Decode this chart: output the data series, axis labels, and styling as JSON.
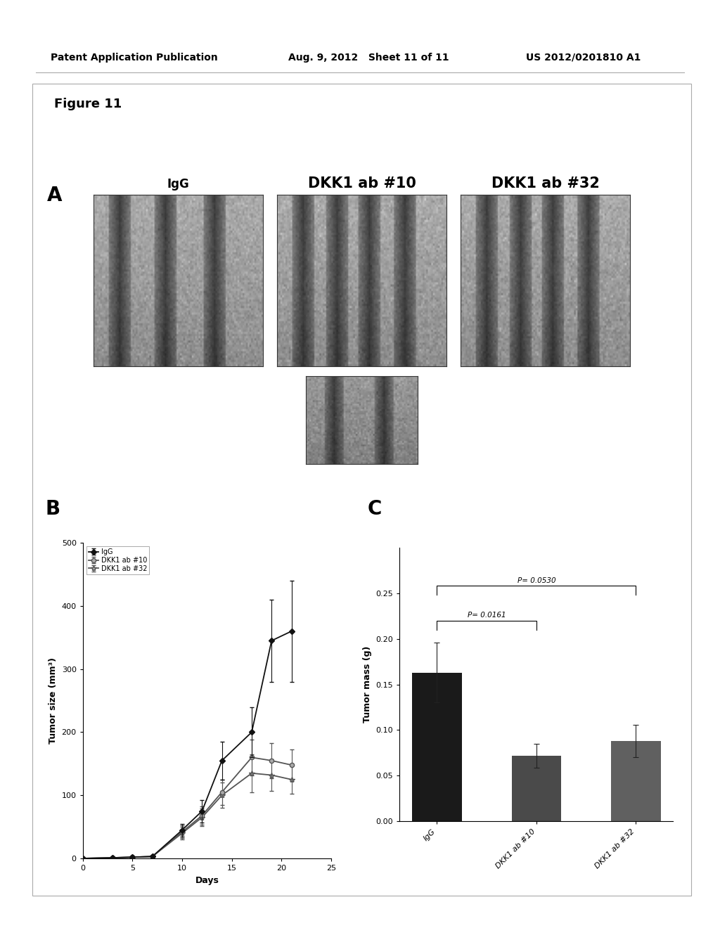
{
  "header_left": "Patent Application Publication",
  "header_mid": "Aug. 9, 2012   Sheet 11 of 11",
  "header_right": "US 2012/0201810 A1",
  "figure_label": "Figure 11",
  "panel_A_label": "A",
  "panel_B_label": "B",
  "panel_C_label": "C",
  "panel_A_titles": [
    "IgG",
    "DKK1 ab #10",
    "DKK1 ab #32"
  ],
  "line_days": [
    0,
    3,
    5,
    7,
    10,
    12,
    14,
    17,
    19,
    21
  ],
  "line_IgG": [
    0,
    1,
    2,
    3,
    45,
    75,
    155,
    200,
    345,
    360
  ],
  "line_IgG_err": [
    0,
    0.5,
    0.5,
    1,
    10,
    18,
    30,
    40,
    65,
    80
  ],
  "line_DKK10": [
    0,
    1,
    2,
    3,
    42,
    68,
    105,
    160,
    155,
    148
  ],
  "line_DKK10_err": [
    0,
    0.5,
    0.5,
    1,
    10,
    14,
    20,
    28,
    28,
    25
  ],
  "line_DKK32": [
    0,
    1,
    2,
    3,
    40,
    65,
    100,
    135,
    132,
    125
  ],
  "line_DKK32_err": [
    0,
    0.5,
    0.5,
    1,
    10,
    14,
    20,
    30,
    25,
    22
  ],
  "legend_labels": [
    "IgG",
    "DKK1 ab #10",
    "DKK1 ab #32"
  ],
  "xlabel_B": "Days",
  "ylabel_B": "Tumor size (mm³)",
  "xlim_B": [
    0,
    25
  ],
  "ylim_B": [
    0,
    500
  ],
  "xticks_B": [
    0,
    5,
    10,
    15,
    20,
    25
  ],
  "yticks_B": [
    0,
    100,
    200,
    300,
    400,
    500
  ],
  "bar_categories": [
    "IgG",
    "DKK1 ab #10",
    "DKK1 ab #32"
  ],
  "bar_values": [
    0.163,
    0.072,
    0.088
  ],
  "bar_errors": [
    0.033,
    0.013,
    0.018
  ],
  "bar_colors_C": [
    "#1a1a1a",
    "#4a4a4a",
    "#606060"
  ],
  "ylabel_C": "Tumor mass (g)",
  "ylim_C": [
    0,
    0.3
  ],
  "yticks_C": [
    0.0,
    0.05,
    0.1,
    0.15,
    0.2,
    0.25
  ],
  "pval1": "P= 0.0161",
  "pval2": "P= 0.0530",
  "bg_color": "#ffffff",
  "text_color": "#000000",
  "header_fontsize": 10,
  "figure_label_fontsize": 13,
  "panel_label_fontsize": 20,
  "axis_label_fontsize": 9,
  "tick_fontsize": 8
}
